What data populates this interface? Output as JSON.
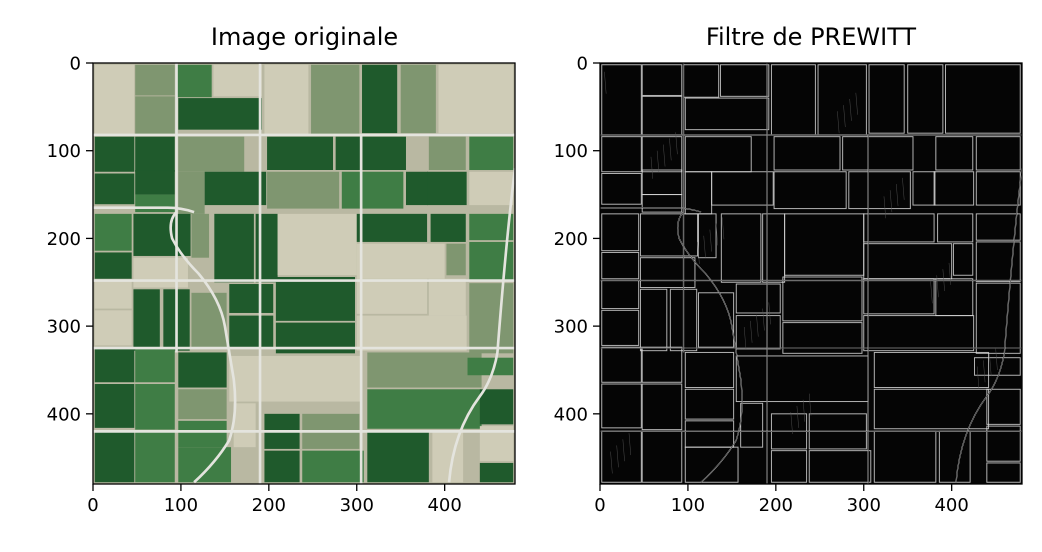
{
  "chart_data": [
    {
      "type": "image",
      "title": "Image originale",
      "xlim": [
        0,
        480
      ],
      "ylim": [
        480,
        0
      ],
      "xticks": [
        0,
        100,
        200,
        300,
        400
      ],
      "yticks": [
        0,
        100,
        200,
        300,
        400
      ],
      "xtick_labels": [
        "0",
        "100",
        "200",
        "300",
        "400"
      ],
      "ytick_labels": [
        "0",
        "100",
        "200",
        "300",
        "400"
      ],
      "grid": false,
      "colors": {
        "background": "#b9b8a2",
        "dark_field": "#1f5a2c",
        "mid_field": "#3f7d45",
        "light_field": "#7f9670",
        "pale_field": "#cfccb7",
        "road": "#e4e4de"
      },
      "content": "aerial-farmland"
    },
    {
      "type": "image",
      "title": "Filtre de PREWITT",
      "xlim": [
        0,
        480
      ],
      "ylim": [
        480,
        0
      ],
      "xticks": [
        0,
        100,
        200,
        300,
        400
      ],
      "yticks": [
        0,
        100,
        200,
        300,
        400
      ],
      "xtick_labels": [
        "0",
        "100",
        "200",
        "300",
        "400"
      ],
      "ytick_labels": [
        "0",
        "100",
        "200",
        "300",
        "400"
      ],
      "grid": false,
      "colors": {
        "background": "#050505",
        "edge": "#d8d8d8",
        "faint_edge": "#555555"
      },
      "content": "prewitt-edge-map"
    }
  ]
}
